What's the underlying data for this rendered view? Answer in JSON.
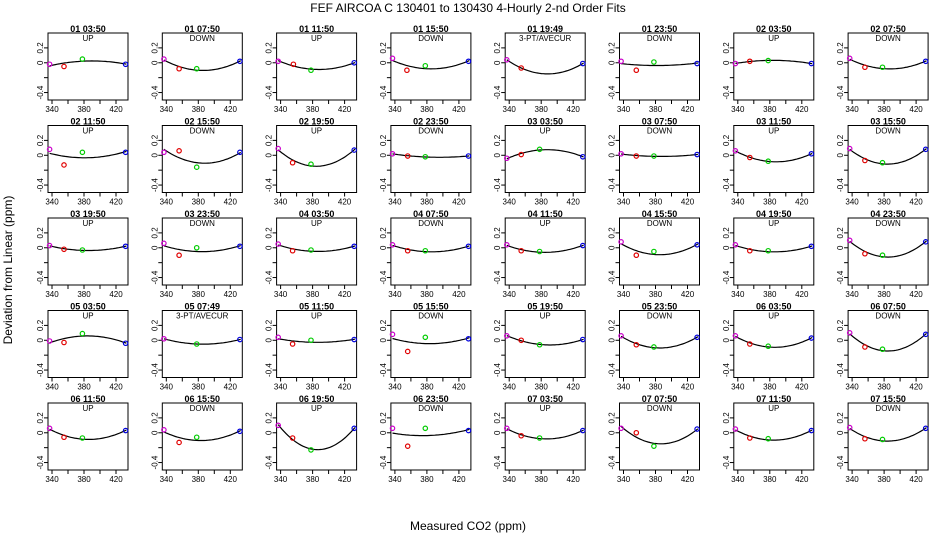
{
  "figure": {
    "title": "FEF   AIRCOA C   130401 to 130430   4-Hourly 2-nd Order Fits",
    "xlabel": "Measured CO2 (ppm)",
    "ylabel": "Deviation from Linear (ppm)"
  },
  "chart_data": {
    "type": "scatter",
    "grid": false,
    "xlim": [
      335,
      435
    ],
    "ylim": [
      -0.5,
      0.4
    ],
    "xticks": [
      340,
      380,
      420
    ],
    "xticks_minor": [
      360,
      400
    ],
    "yticks": [
      -0.4,
      0,
      0.2
    ],
    "yticks_unlabeled": [
      -0.2
    ],
    "point_colors": [
      "#cc00cc",
      "#e00000",
      "#00cc00",
      "#0000dd"
    ],
    "panels": [
      {
        "title": "01 03:50",
        "mode": "UP",
        "points": [
          [
            337,
            -0.02
          ],
          [
            355,
            -0.05
          ],
          [
            378,
            0.05
          ],
          [
            432,
            -0.02
          ]
        ]
      },
      {
        "title": "01 07:50",
        "mode": "DOWN",
        "points": [
          [
            337,
            0.05
          ],
          [
            356,
            -0.08
          ],
          [
            378,
            -0.08
          ],
          [
            432,
            0.02
          ]
        ]
      },
      {
        "title": "01 11:50",
        "mode": "UP",
        "points": [
          [
            337,
            0.02
          ],
          [
            356,
            -0.02
          ],
          [
            378,
            -0.1
          ],
          [
            432,
            0.0
          ]
        ]
      },
      {
        "title": "01 15:50",
        "mode": "DOWN",
        "points": [
          [
            337,
            0.06
          ],
          [
            355,
            -0.1
          ],
          [
            378,
            -0.04
          ],
          [
            432,
            0.02
          ]
        ]
      },
      {
        "title": "01 19:49",
        "mode": "3-PT/AVECUR",
        "points": [
          [
            337,
            0.04
          ],
          [
            355,
            -0.07
          ],
          [
            432,
            -0.01
          ]
        ]
      },
      {
        "title": "01 23:50",
        "mode": "DOWN",
        "points": [
          [
            337,
            0.02
          ],
          [
            356,
            -0.1
          ],
          [
            378,
            0.01
          ],
          [
            432,
            -0.01
          ]
        ]
      },
      {
        "title": "02 03:50",
        "mode": "UP",
        "points": [
          [
            337,
            -0.01
          ],
          [
            355,
            0.02
          ],
          [
            378,
            0.03
          ],
          [
            432,
            -0.01
          ]
        ]
      },
      {
        "title": "02 07:50",
        "mode": "DOWN",
        "points": [
          [
            337,
            0.06
          ],
          [
            356,
            -0.06
          ],
          [
            378,
            -0.06
          ],
          [
            432,
            0.02
          ]
        ]
      },
      {
        "title": "02 11:50",
        "mode": "UP",
        "points": [
          [
            337,
            0.08
          ],
          [
            355,
            -0.13
          ],
          [
            378,
            0.04
          ],
          [
            432,
            0.04
          ]
        ]
      },
      {
        "title": "02 15:50",
        "mode": "DOWN",
        "points": [
          [
            337,
            0.04
          ],
          [
            356,
            0.06
          ],
          [
            378,
            -0.16
          ],
          [
            432,
            0.04
          ]
        ]
      },
      {
        "title": "02 19:50",
        "mode": "UP",
        "points": [
          [
            337,
            0.09
          ],
          [
            355,
            -0.1
          ],
          [
            378,
            -0.12
          ],
          [
            432,
            0.07
          ]
        ]
      },
      {
        "title": "02 23:50",
        "mode": "DOWN",
        "points": [
          [
            337,
            0.02
          ],
          [
            356,
            -0.01
          ],
          [
            378,
            -0.02
          ],
          [
            432,
            -0.01
          ]
        ]
      },
      {
        "title": "03 03:50",
        "mode": "UP",
        "points": [
          [
            337,
            -0.04
          ],
          [
            355,
            0.01
          ],
          [
            378,
            0.08
          ],
          [
            432,
            -0.02
          ]
        ]
      },
      {
        "title": "03 07:50",
        "mode": "DOWN",
        "points": [
          [
            337,
            0.02
          ],
          [
            356,
            -0.01
          ],
          [
            378,
            -0.01
          ],
          [
            432,
            0.01
          ]
        ]
      },
      {
        "title": "03 11:50",
        "mode": "UP",
        "points": [
          [
            337,
            0.06
          ],
          [
            355,
            -0.03
          ],
          [
            378,
            -0.08
          ],
          [
            432,
            0.02
          ]
        ]
      },
      {
        "title": "03 15:50",
        "mode": "DOWN",
        "points": [
          [
            337,
            0.09
          ],
          [
            356,
            -0.07
          ],
          [
            378,
            -0.1
          ],
          [
            432,
            0.08
          ]
        ]
      },
      {
        "title": "03 19:50",
        "mode": "UP",
        "points": [
          [
            337,
            0.03
          ],
          [
            355,
            -0.02
          ],
          [
            378,
            -0.03
          ],
          [
            432,
            0.02
          ]
        ]
      },
      {
        "title": "03 23:50",
        "mode": "DOWN",
        "points": [
          [
            337,
            0.06
          ],
          [
            356,
            -0.1
          ],
          [
            378,
            0.0
          ],
          [
            432,
            0.02
          ]
        ]
      },
      {
        "title": "04 03:50",
        "mode": "UP",
        "points": [
          [
            337,
            0.05
          ],
          [
            355,
            -0.04
          ],
          [
            378,
            -0.03
          ],
          [
            432,
            0.02
          ]
        ]
      },
      {
        "title": "04 07:50",
        "mode": "DOWN",
        "points": [
          [
            337,
            0.04
          ],
          [
            356,
            -0.04
          ],
          [
            378,
            -0.04
          ],
          [
            432,
            0.02
          ]
        ]
      },
      {
        "title": "04 11:50",
        "mode": "UP",
        "points": [
          [
            337,
            0.04
          ],
          [
            355,
            -0.04
          ],
          [
            378,
            -0.05
          ],
          [
            432,
            0.03
          ]
        ]
      },
      {
        "title": "04 15:50",
        "mode": "DOWN",
        "points": [
          [
            337,
            0.08
          ],
          [
            356,
            -0.1
          ],
          [
            378,
            -0.05
          ],
          [
            432,
            0.04
          ]
        ]
      },
      {
        "title": "04 19:50",
        "mode": "UP",
        "points": [
          [
            337,
            0.04
          ],
          [
            355,
            -0.04
          ],
          [
            378,
            -0.04
          ],
          [
            432,
            0.02
          ]
        ]
      },
      {
        "title": "04 23:50",
        "mode": "DOWN",
        "points": [
          [
            337,
            0.1
          ],
          [
            356,
            -0.08
          ],
          [
            378,
            -0.1
          ],
          [
            432,
            0.08
          ]
        ]
      },
      {
        "title": "05 03:50",
        "mode": "UP",
        "points": [
          [
            337,
            -0.01
          ],
          [
            355,
            -0.03
          ],
          [
            378,
            0.09
          ],
          [
            432,
            -0.04
          ]
        ]
      },
      {
        "title": "05 07:49",
        "mode": "3-PT/AVECUR",
        "points": [
          [
            337,
            0.02
          ],
          [
            378,
            -0.05
          ],
          [
            432,
            0.01
          ]
        ]
      },
      {
        "title": "05 11:50",
        "mode": "UP",
        "points": [
          [
            337,
            0.04
          ],
          [
            355,
            -0.05
          ],
          [
            378,
            0.0
          ],
          [
            432,
            0.01
          ]
        ]
      },
      {
        "title": "05 15:50",
        "mode": "DOWN",
        "points": [
          [
            337,
            0.08
          ],
          [
            356,
            -0.15
          ],
          [
            378,
            0.04
          ],
          [
            432,
            0.02
          ]
        ]
      },
      {
        "title": "05 19:50",
        "mode": "UP",
        "points": [
          [
            337,
            0.06
          ],
          [
            355,
            0.0
          ],
          [
            378,
            -0.06
          ],
          [
            432,
            0.01
          ]
        ]
      },
      {
        "title": "05 23:50",
        "mode": "DOWN",
        "points": [
          [
            337,
            0.06
          ],
          [
            356,
            -0.06
          ],
          [
            378,
            -0.09
          ],
          [
            432,
            0.04
          ]
        ]
      },
      {
        "title": "06 03:50",
        "mode": "UP",
        "points": [
          [
            337,
            0.06
          ],
          [
            355,
            -0.05
          ],
          [
            378,
            -0.08
          ],
          [
            432,
            0.03
          ]
        ]
      },
      {
        "title": "06 07:50",
        "mode": "DOWN",
        "points": [
          [
            337,
            0.1
          ],
          [
            356,
            -0.09
          ],
          [
            378,
            -0.12
          ],
          [
            432,
            0.08
          ]
        ]
      },
      {
        "title": "06 11:50",
        "mode": "UP",
        "points": [
          [
            337,
            0.06
          ],
          [
            355,
            -0.06
          ],
          [
            378,
            -0.07
          ],
          [
            432,
            0.03
          ]
        ]
      },
      {
        "title": "06 15:50",
        "mode": "DOWN",
        "points": [
          [
            337,
            0.04
          ],
          [
            356,
            -0.13
          ],
          [
            378,
            -0.06
          ],
          [
            432,
            0.02
          ]
        ]
      },
      {
        "title": "06 19:50",
        "mode": "UP",
        "points": [
          [
            337,
            0.1
          ],
          [
            355,
            -0.07
          ],
          [
            378,
            -0.23
          ],
          [
            432,
            0.06
          ]
        ]
      },
      {
        "title": "06 23:50",
        "mode": "DOWN",
        "points": [
          [
            337,
            0.06
          ],
          [
            356,
            -0.18
          ],
          [
            378,
            0.06
          ],
          [
            432,
            0.03
          ]
        ]
      },
      {
        "title": "07 03:50",
        "mode": "UP",
        "points": [
          [
            337,
            0.06
          ],
          [
            355,
            -0.04
          ],
          [
            378,
            -0.07
          ],
          [
            432,
            0.03
          ]
        ]
      },
      {
        "title": "07 07:50",
        "mode": "DOWN",
        "points": [
          [
            337,
            0.06
          ],
          [
            356,
            0.0
          ],
          [
            378,
            -0.18
          ],
          [
            432,
            0.05
          ]
        ]
      },
      {
        "title": "07 11:50",
        "mode": "UP",
        "points": [
          [
            337,
            0.05
          ],
          [
            355,
            -0.07
          ],
          [
            378,
            -0.08
          ],
          [
            432,
            0.03
          ]
        ]
      },
      {
        "title": "07 15:50",
        "mode": "DOWN",
        "points": [
          [
            337,
            0.07
          ],
          [
            356,
            -0.08
          ],
          [
            378,
            -0.09
          ],
          [
            432,
            0.06
          ]
        ]
      }
    ]
  }
}
